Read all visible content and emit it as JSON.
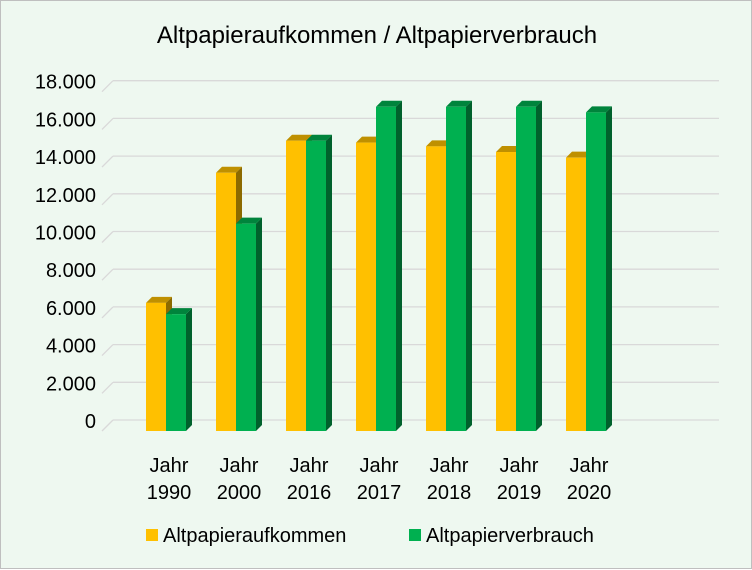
{
  "chart_data": {
    "type": "bar",
    "title": "Altpapieraufkommen / Altpapierverbrauch",
    "categories": [
      [
        "Jahr",
        "1990"
      ],
      [
        "Jahr",
        "2000"
      ],
      [
        "Jahr",
        "2016"
      ],
      [
        "Jahr",
        "2017"
      ],
      [
        "Jahr",
        "2018"
      ],
      [
        "Jahr",
        "2019"
      ],
      [
        "Jahr",
        "2020"
      ]
    ],
    "series": [
      {
        "name": "Altpapieraufkommen",
        "color": "#ffc000",
        "values": [
          6800,
          13700,
          15400,
          15300,
          15100,
          14800,
          14500
        ]
      },
      {
        "name": "Altpapierverbrauch",
        "color": "#00b050",
        "values": [
          6200,
          11000,
          15400,
          17200,
          17200,
          17200,
          16900
        ]
      }
    ],
    "yticks": [
      "0",
      "2.000",
      "4.000",
      "6.000",
      "8.000",
      "10.000",
      "12.000",
      "14.000",
      "16.000",
      "18.000"
    ],
    "ylim": [
      0,
      18000
    ],
    "grid": true,
    "legend": "bottom",
    "style": "3d-clustered-column"
  }
}
